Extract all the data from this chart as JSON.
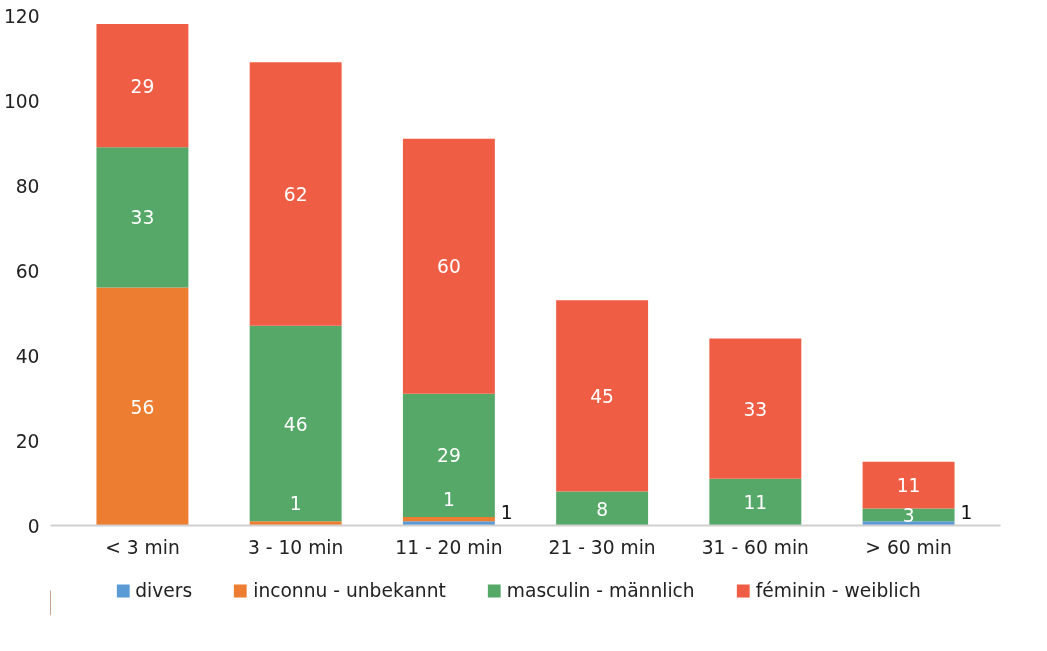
{
  "chart_data": {
    "type": "bar",
    "stacked": true,
    "categories": [
      "< 3 min",
      "3 - 10 min",
      "11 - 20 min",
      "21 - 30 min",
      "31 - 60 min",
      "> 60 min"
    ],
    "series": [
      {
        "name": "divers",
        "color": "#5b9bd5",
        "values": [
          0,
          0,
          1,
          0,
          0,
          1
        ],
        "value_labels": [
          null,
          null,
          "1",
          null,
          null,
          "1"
        ]
      },
      {
        "name": "inconnu - unbekannt",
        "color": "#ed7d31",
        "values": [
          56,
          1,
          1,
          0,
          0,
          0
        ],
        "value_labels": [
          "56",
          "1",
          "1",
          null,
          null,
          null
        ]
      },
      {
        "name": "masculin - männlich",
        "color": "#55a868",
        "values": [
          33,
          46,
          29,
          8,
          11,
          3
        ],
        "value_labels": [
          "33",
          "46",
          "29",
          "8",
          "11",
          "3"
        ]
      },
      {
        "name": "féminin - weiblich",
        "color": "#f05d45",
        "values": [
          29,
          62,
          60,
          45,
          33,
          11
        ],
        "value_labels": [
          "29",
          "62",
          "60",
          "45",
          "33",
          "11"
        ]
      }
    ],
    "ylim": [
      0,
      120
    ],
    "yticks": [
      0,
      20,
      40,
      60,
      80,
      100,
      120
    ],
    "grid": false,
    "legend": "bottom"
  }
}
